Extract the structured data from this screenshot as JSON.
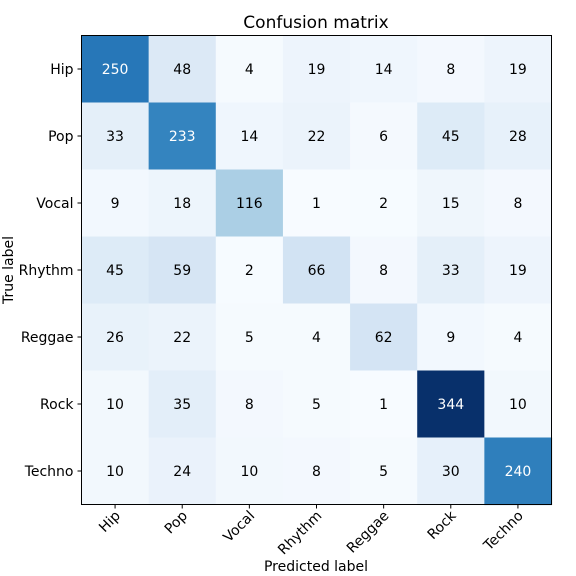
{
  "chart_data": {
    "type": "heatmap",
    "title": "Confusion matrix",
    "xlabel": "Predicted label",
    "ylabel": "True label",
    "x_categories": [
      "Hip",
      "Pop",
      "Vocal",
      "Rhythm",
      "Reggae",
      "Rock",
      "Techno"
    ],
    "y_categories": [
      "Hip",
      "Pop",
      "Vocal",
      "Rhythm",
      "Reggae",
      "Rock",
      "Techno"
    ],
    "values": [
      [
        250,
        48,
        4,
        19,
        14,
        8,
        19
      ],
      [
        33,
        233,
        14,
        22,
        6,
        45,
        28
      ],
      [
        9,
        18,
        116,
        1,
        2,
        15,
        8
      ],
      [
        45,
        59,
        2,
        66,
        8,
        33,
        19
      ],
      [
        26,
        22,
        5,
        4,
        62,
        9,
        4
      ],
      [
        10,
        35,
        8,
        5,
        1,
        344,
        10
      ],
      [
        10,
        24,
        10,
        8,
        5,
        30,
        240
      ]
    ],
    "colormap": "Blues",
    "grid": false,
    "legend": "none"
  }
}
